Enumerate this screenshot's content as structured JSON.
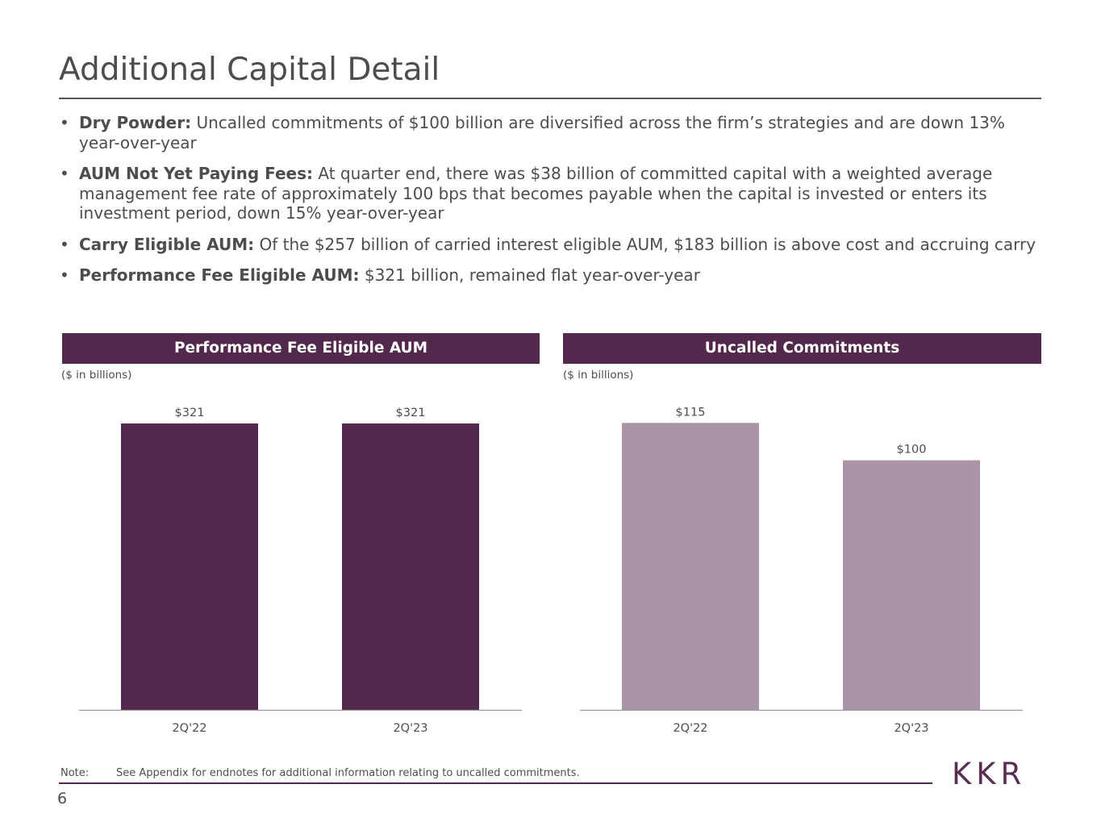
{
  "page": {
    "title": "Additional Capital Detail",
    "page_number": "6",
    "logo_text": "KKR",
    "note_label": "Note:",
    "note_text": "See Appendix for endnotes for additional information relating to uncalled commitments."
  },
  "bullets": [
    {
      "bold": "Dry Powder:",
      "text": " Uncalled commitments of $100 billion are diversified across the firm’s strategies and are down 13% year-over-year"
    },
    {
      "bold": "AUM Not Yet Paying Fees:",
      "text": " At quarter end, there was $38 billion of committed capital with a weighted average management fee rate of approximately 100 bps that becomes payable when the capital is invested or enters its investment period, down 15% year-over-year"
    },
    {
      "bold": "Carry Eligible AUM:",
      "text": " Of the $257 billion of carried interest eligible AUM, $183 billion is above cost and accruing carry"
    },
    {
      "bold": "Performance Fee Eligible AUM:",
      "text": " $321 billion, remained flat year-over-year"
    }
  ],
  "bullet_glyph": "•",
  "chart_data": [
    {
      "type": "bar",
      "title": "Performance Fee Eligible AUM",
      "units_label": "($ in billions)",
      "categories": [
        "2Q'22",
        "2Q'23"
      ],
      "values": [
        321,
        321
      ],
      "value_labels": [
        "$321",
        "$321"
      ],
      "color": "#52284c",
      "ylim": [
        0,
        330
      ]
    },
    {
      "type": "bar",
      "title": "Uncalled Commitments",
      "units_label": "($ in billions)",
      "categories": [
        "2Q'22",
        "2Q'23"
      ],
      "values": [
        115,
        100
      ],
      "value_labels": [
        "$115",
        "$100"
      ],
      "color": "#a995a7",
      "ylim": [
        0,
        118
      ]
    }
  ]
}
